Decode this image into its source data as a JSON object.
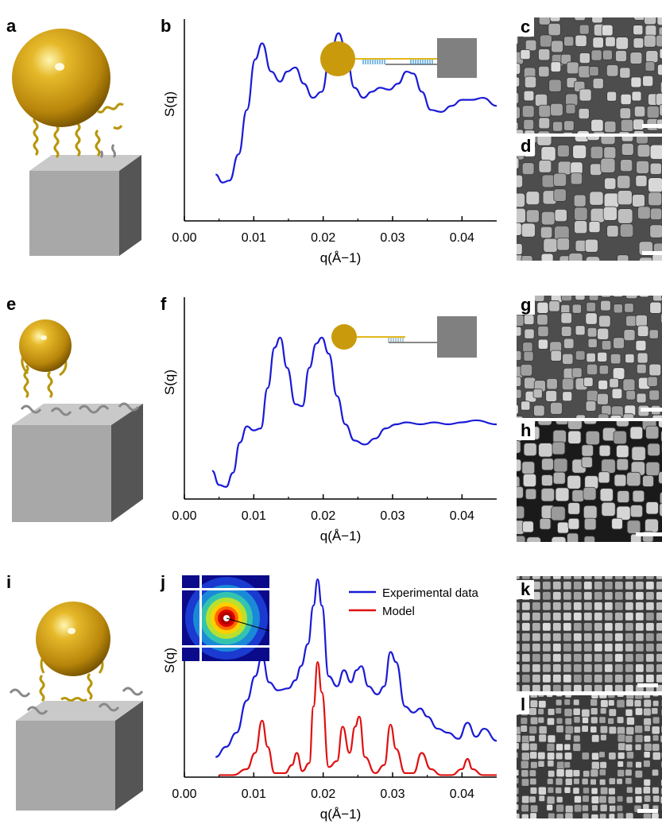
{
  "panels": {
    "a": "a",
    "b": "b",
    "c": "c",
    "d": "d",
    "e": "e",
    "f": "f",
    "g": "g",
    "h": "h",
    "i": "i",
    "j": "j",
    "k": "k",
    "l": "l"
  },
  "axis": {
    "ylabel": "S(q)",
    "xlabel": "q(Å−1)",
    "xticks": [
      "0.00",
      "0.01",
      "0.02",
      "0.03",
      "0.04"
    ]
  },
  "legend": {
    "experimental": "Experimental data",
    "model": "Model"
  },
  "colors": {
    "experimental": "#1a1ad6",
    "model": "#e01010",
    "gold": "#c99a0c",
    "cube": "#a8a8a8",
    "ligand_blue": "#2b8fd6"
  },
  "chart_data": [
    {
      "panel": "b",
      "type": "line",
      "xlabel": "q(Å−1)",
      "ylabel": "S(q)",
      "xlim": [
        0.0,
        0.045
      ],
      "series": [
        {
          "x": [
            0.0045,
            0.0055,
            0.0065,
            0.0078,
            0.009,
            0.0102,
            0.0112,
            0.0125,
            0.0138,
            0.0148,
            0.016,
            0.0172,
            0.0185,
            0.0198,
            0.021,
            0.0222,
            0.0232,
            0.0245,
            0.0258,
            0.027,
            0.0282,
            0.0295,
            0.0308,
            0.032,
            0.033,
            0.0342,
            0.0355,
            0.037,
            0.0385,
            0.04,
            0.0415,
            0.043,
            0.045
          ],
          "y": [
            0.23,
            0.19,
            0.2,
            0.33,
            0.55,
            0.8,
            0.88,
            0.74,
            0.69,
            0.74,
            0.76,
            0.68,
            0.61,
            0.64,
            0.82,
            0.93,
            0.86,
            0.66,
            0.61,
            0.64,
            0.66,
            0.65,
            0.68,
            0.74,
            0.73,
            0.64,
            0.55,
            0.54,
            0.57,
            0.6,
            0.6,
            0.61,
            0.57
          ]
        }
      ]
    },
    {
      "panel": "f",
      "type": "line",
      "xlabel": "q(Å−1)",
      "ylabel": "S(q)",
      "xlim": [
        0.0,
        0.045
      ],
      "series": [
        {
          "x": [
            0.004,
            0.005,
            0.006,
            0.007,
            0.008,
            0.009,
            0.01,
            0.011,
            0.012,
            0.013,
            0.0138,
            0.0148,
            0.016,
            0.017,
            0.018,
            0.019,
            0.0198,
            0.0208,
            0.022,
            0.0232,
            0.0245,
            0.026,
            0.0275,
            0.029,
            0.0305,
            0.032,
            0.034,
            0.036,
            0.038,
            0.04,
            0.042,
            0.045
          ],
          "y": [
            0.14,
            0.07,
            0.06,
            0.13,
            0.28,
            0.36,
            0.34,
            0.35,
            0.55,
            0.75,
            0.8,
            0.65,
            0.47,
            0.46,
            0.65,
            0.77,
            0.8,
            0.72,
            0.51,
            0.37,
            0.29,
            0.27,
            0.3,
            0.35,
            0.37,
            0.38,
            0.37,
            0.38,
            0.37,
            0.38,
            0.39,
            0.37
          ]
        }
      ]
    },
    {
      "panel": "j",
      "type": "line",
      "xlabel": "q(Å−1)",
      "ylabel": "S(q)",
      "xlim": [
        0.0,
        0.045
      ],
      "legend": "top-right",
      "series": [
        {
          "name": "Experimental data",
          "x": [
            0.0045,
            0.006,
            0.0075,
            0.009,
            0.0102,
            0.0112,
            0.0122,
            0.0135,
            0.015,
            0.016,
            0.0168,
            0.0178,
            0.0186,
            0.0192,
            0.0198,
            0.0208,
            0.022,
            0.023,
            0.024,
            0.0248,
            0.0255,
            0.0265,
            0.0278,
            0.0288,
            0.0297,
            0.0305,
            0.0318,
            0.033,
            0.034,
            0.035,
            0.0365,
            0.038,
            0.0395,
            0.0408,
            0.042,
            0.0432,
            0.045
          ],
          "y": [
            0.1,
            0.15,
            0.22,
            0.38,
            0.5,
            0.6,
            0.47,
            0.43,
            0.44,
            0.48,
            0.55,
            0.66,
            0.85,
            0.98,
            0.85,
            0.5,
            0.45,
            0.53,
            0.47,
            0.53,
            0.55,
            0.45,
            0.41,
            0.45,
            0.62,
            0.57,
            0.35,
            0.32,
            0.34,
            0.3,
            0.24,
            0.22,
            0.19,
            0.27,
            0.2,
            0.24,
            0.18
          ]
        },
        {
          "name": "Model",
          "x": [
            0.005,
            0.007,
            0.009,
            0.0102,
            0.0112,
            0.012,
            0.013,
            0.0145,
            0.0155,
            0.0162,
            0.017,
            0.018,
            0.0186,
            0.0192,
            0.0198,
            0.0208,
            0.022,
            0.0228,
            0.0238,
            0.0246,
            0.0252,
            0.026,
            0.0275,
            0.0288,
            0.0297,
            0.0305,
            0.0318,
            0.033,
            0.0342,
            0.0355,
            0.037,
            0.0385,
            0.04,
            0.0408,
            0.0415,
            0.043,
            0.045
          ],
          "y": [
            0.01,
            0.01,
            0.04,
            0.12,
            0.28,
            0.15,
            0.02,
            0.02,
            0.06,
            0.12,
            0.03,
            0.07,
            0.35,
            0.57,
            0.42,
            0.05,
            0.08,
            0.25,
            0.12,
            0.25,
            0.3,
            0.1,
            0.02,
            0.06,
            0.26,
            0.14,
            0.02,
            0.02,
            0.12,
            0.04,
            0.01,
            0.01,
            0.04,
            0.09,
            0.04,
            0.01,
            0.01
          ]
        }
      ]
    }
  ]
}
